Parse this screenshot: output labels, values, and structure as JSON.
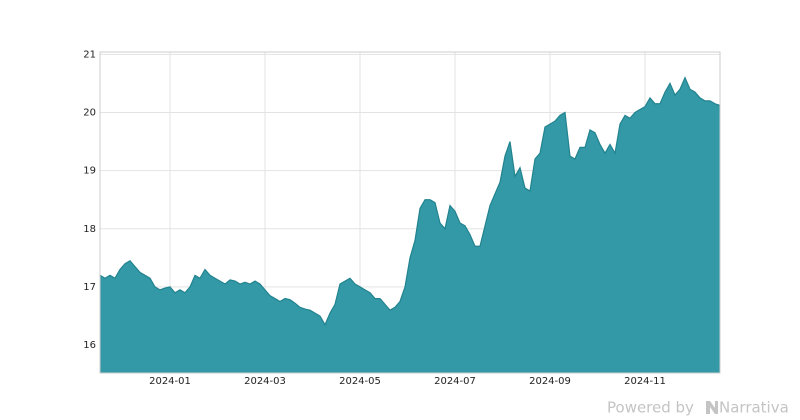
{
  "chart_data": {
    "type": "area",
    "categories": [
      null,
      null,
      null,
      null,
      null,
      null,
      null,
      null,
      null,
      null,
      null,
      null,
      null,
      null,
      "2024-01",
      null,
      null,
      null,
      null,
      null,
      null,
      null,
      null,
      null,
      null,
      null,
      null,
      null,
      null,
      null,
      null,
      null,
      null,
      "2024-03",
      null,
      null,
      null,
      null,
      null,
      null,
      null,
      null,
      null,
      null,
      null,
      null,
      null,
      null,
      null,
      null,
      null,
      null,
      "2024-05",
      null,
      null,
      null,
      null,
      null,
      null,
      null,
      null,
      null,
      null,
      null,
      null,
      null,
      null,
      null,
      null,
      null,
      null,
      "2024-07",
      null,
      null,
      null,
      null,
      null,
      null,
      null,
      null,
      null,
      null,
      null,
      null,
      null,
      null,
      null,
      null,
      null,
      null,
      "2024-09",
      null,
      null,
      null,
      null,
      null,
      null,
      null,
      null,
      null,
      null,
      null,
      null,
      null,
      null,
      null,
      null,
      null,
      null,
      "2024-11",
      null,
      null,
      null,
      null,
      null,
      null,
      null,
      null,
      null,
      null,
      null,
      null,
      null,
      null,
      null
    ],
    "values": [
      17.2,
      17.15,
      17.2,
      17.15,
      17.3,
      17.4,
      17.45,
      17.35,
      17.25,
      17.2,
      17.15,
      17.0,
      16.95,
      16.98,
      17.0,
      16.9,
      16.95,
      16.9,
      17.0,
      17.2,
      17.15,
      17.3,
      17.2,
      17.15,
      17.1,
      17.05,
      17.12,
      17.1,
      17.05,
      17.08,
      17.05,
      17.1,
      17.05,
      16.95,
      16.85,
      16.8,
      16.75,
      16.8,
      16.78,
      16.72,
      16.65,
      16.62,
      16.6,
      16.55,
      16.5,
      16.35,
      16.55,
      16.7,
      17.05,
      17.1,
      17.15,
      17.05,
      17.0,
      16.95,
      16.9,
      16.8,
      16.8,
      16.7,
      16.6,
      16.65,
      16.75,
      17.0,
      17.5,
      17.8,
      18.35,
      18.5,
      18.5,
      18.45,
      18.1,
      18.0,
      18.4,
      18.3,
      18.1,
      18.05,
      17.9,
      17.7,
      17.7,
      18.05,
      18.4,
      18.6,
      18.8,
      19.25,
      19.5,
      18.9,
      19.05,
      18.7,
      18.65,
      19.2,
      19.3,
      19.75,
      19.8,
      19.85,
      19.95,
      20.0,
      19.25,
      19.2,
      19.4,
      19.4,
      19.7,
      19.65,
      19.45,
      19.3,
      19.45,
      19.3,
      19.8,
      19.95,
      19.9,
      20.0,
      20.05,
      20.1,
      20.25,
      20.15,
      20.15,
      20.35,
      20.5,
      20.3,
      20.4,
      20.6,
      20.4,
      20.35,
      20.25,
      20.2,
      20.2,
      20.15,
      20.12
    ],
    "color": "#3399a6",
    "line_color": "#22838f",
    "ylim": [
      15.52,
      21.04
    ],
    "yticks": [
      16,
      17,
      18,
      19,
      20,
      21
    ],
    "grid": true,
    "watermark": [
      "Powered by",
      "Narrativa"
    ]
  }
}
